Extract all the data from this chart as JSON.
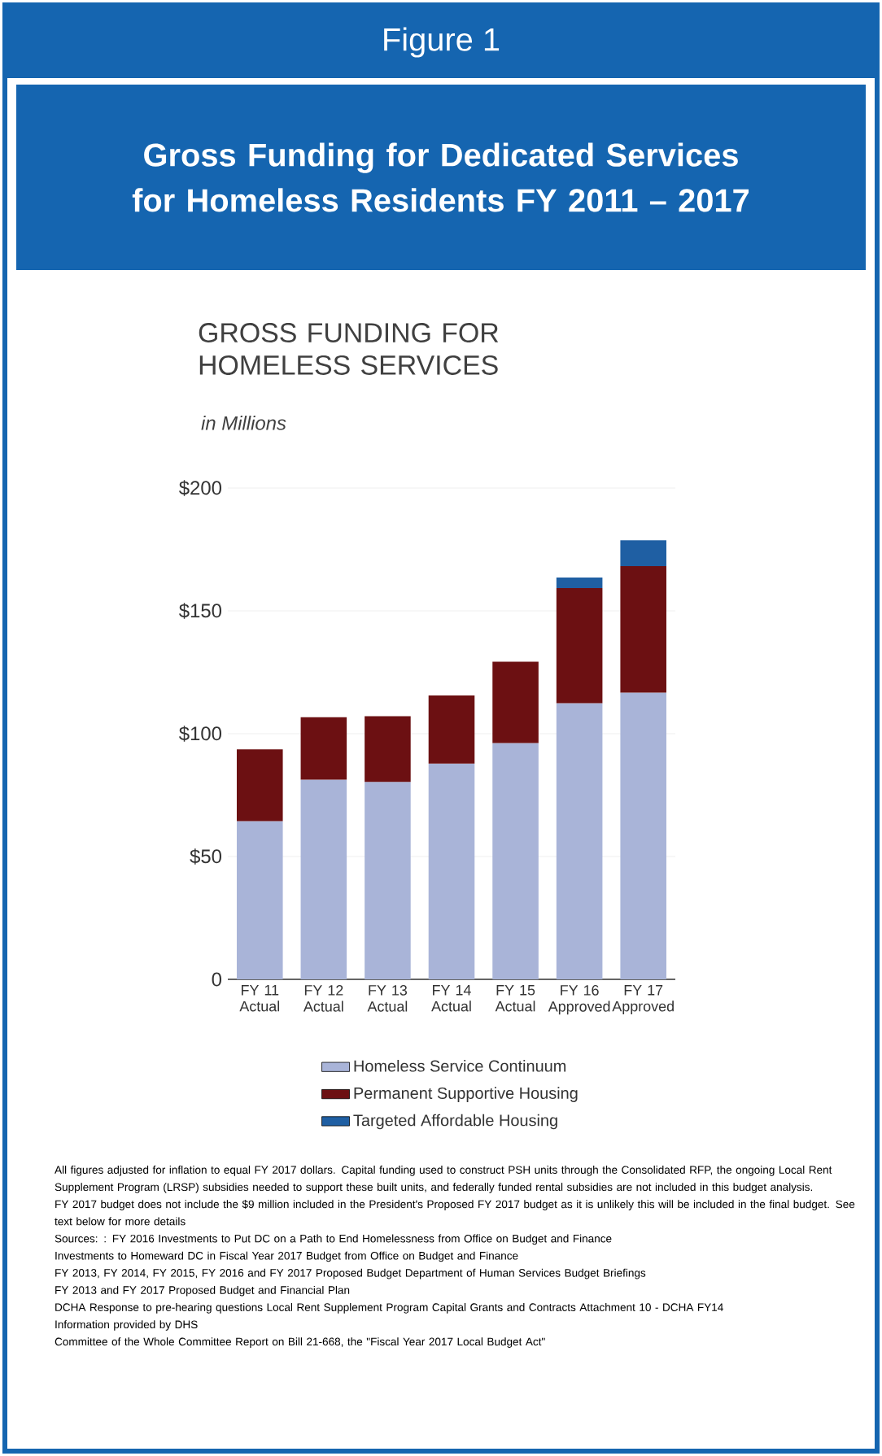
{
  "chart_data": {
    "type": "bar",
    "title": "Gross Funding for Dedicated Services for Homeless Residents FY 2011 – 2017",
    "subtitle": "GROSS FUNDING FOR HOMELESS SERVICES",
    "categories": [
      "FY 11 Actual",
      "FY 12 Actual",
      "FY 13 Actual",
      "FY 14 Actual",
      "FY 15 Actual",
      "FY 16 Approved",
      "FY 17 Approved"
    ],
    "stacked": true,
    "series": [
      {
        "name": "Homeless Service Continuum",
        "color": "#a9b4d8",
        "values": [
          64.4,
          81.3,
          80.4,
          87.8,
          96.2,
          112.4,
          116.7
        ]
      },
      {
        "name": "Permanent Supportive Housing",
        "color": "#6c1012",
        "values": [
          29.2,
          25.4,
          26.7,
          27.8,
          33.1,
          46.9,
          51.5
        ]
      },
      {
        "name": "Targeted Affordable Housing",
        "color": "#1f5fa3",
        "values": [
          null,
          null,
          null,
          null,
          null,
          4.3,
          10.5
        ]
      }
    ],
    "ylim": [
      0,
      200
    ],
    "yticks": [
      {
        "value": 0,
        "label": "0"
      },
      {
        "value": 50,
        "label": "$50"
      },
      {
        "value": 100,
        "label": "$100"
      },
      {
        "value": 150,
        "label": "$150"
      },
      {
        "value": 200,
        "label": "$200"
      }
    ],
    "grid": "y",
    "legend": "bottom",
    "annotations": [
      "Figure 1",
      "in Millions",
      "All figures adjusted for inflation to equal FY 2017 dollars. Capital funding used to construct PSH units through the Consolidated RFP, the ongoing Local Rent Supplement Program (LRSP) subsidies needed to support these built units, and federally funded rental subsidies are not included in this budget analysis.",
      "FY 2017 budget does not include the $9 million included in the President's Proposed FY 2017 budget as it is unlikely this will be included in the final budget. See text below for more details",
      "Sources: : FY 2016 Investments to Put DC on a Path to End Homelessness from Office on Budget and Finance",
      "Investments to Homeward DC in Fiscal Year 2017 Budget from Office on Budget and Finance",
      "FY 2013, FY 2014, FY 2015, FY 2016 and FY 2017 Proposed Budget Department of Human Services Budget Briefings",
      "FY 2013 and FY 2017 Proposed Budget and Financial Plan",
      "DCHA Response to pre-hearing questions Local Rent Supplement Program Capital Grants and Contracts Attachment 10 - DCHA FY14",
      "Information provided by DHS",
      "Committee of the Whole Committee Report on Bill 21-668, the \"Fiscal Year 2017 Local Budget Act\""
    ]
  }
}
